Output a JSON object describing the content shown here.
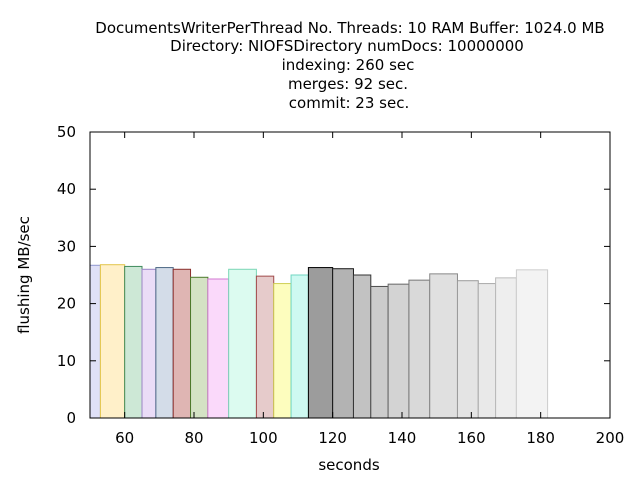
{
  "chart_data": {
    "type": "bar",
    "title_lines": [
      "DocumentsWriterPerThread No. Threads: 10 RAM Buffer: 1024.0 MB",
      "Directory: NIOFSDirectory numDocs: 10000000",
      "indexing: 260 sec",
      "merges: 92 sec.",
      "commit: 23 sec."
    ],
    "xlabel": "seconds",
    "ylabel": "flushing MB/sec",
    "xlim": [
      50,
      200
    ],
    "ylim": [
      0,
      50
    ],
    "xticks": [
      60,
      80,
      100,
      120,
      140,
      160,
      180,
      200
    ],
    "yticks": [
      0,
      10,
      20,
      30,
      40,
      50
    ],
    "grid": false,
    "legend": "none",
    "bars": [
      {
        "x0": 50,
        "x1": 53,
        "value": 26.7,
        "fill": "#dfe0f7",
        "stroke": "#8f97cf"
      },
      {
        "x0": 53,
        "x1": 60,
        "value": 26.8,
        "fill": "#fff0c9",
        "stroke": "#e2c44a"
      },
      {
        "x0": 60,
        "x1": 65,
        "value": 26.5,
        "fill": "#cde8d6",
        "stroke": "#3f8a5c"
      },
      {
        "x0": 65,
        "x1": 69,
        "value": 26.0,
        "fill": "#eadcf7",
        "stroke": "#9a83c6"
      },
      {
        "x0": 69,
        "x1": 74,
        "value": 26.3,
        "fill": "#d3dce8",
        "stroke": "#4e6986"
      },
      {
        "x0": 74,
        "x1": 79,
        "value": 26.0,
        "fill": "#dfb5b3",
        "stroke": "#8a2f2b"
      },
      {
        "x0": 79,
        "x1": 84,
        "value": 24.6,
        "fill": "#d4e2c4",
        "stroke": "#4c7a2b"
      },
      {
        "x0": 84,
        "x1": 90,
        "value": 24.3,
        "fill": "#fad9fa",
        "stroke": "#d27ad2"
      },
      {
        "x0": 90,
        "x1": 98,
        "value": 26.0,
        "fill": "#dcfbf0",
        "stroke": "#7ad7b6"
      },
      {
        "x0": 98,
        "x1": 103,
        "value": 24.8,
        "fill": "#e6cbcb",
        "stroke": "#a0494a"
      },
      {
        "x0": 103,
        "x1": 108,
        "value": 23.5,
        "fill": "#fdfdbe",
        "stroke": "#cfcf52"
      },
      {
        "x0": 108,
        "x1": 113,
        "value": 25.0,
        "fill": "#cef9f1",
        "stroke": "#70d6c2"
      },
      {
        "x0": 113,
        "x1": 120,
        "value": 26.3,
        "fill": "#9c9c9c",
        "stroke": "#000000"
      },
      {
        "x0": 120,
        "x1": 126,
        "value": 26.1,
        "fill": "#b3b3b3",
        "stroke": "#1a1a1a"
      },
      {
        "x0": 126,
        "x1": 131,
        "value": 25.0,
        "fill": "#c2c2c2",
        "stroke": "#333333"
      },
      {
        "x0": 131,
        "x1": 136,
        "value": 23.0,
        "fill": "#cccccc",
        "stroke": "#4d4d4d"
      },
      {
        "x0": 136,
        "x1": 142,
        "value": 23.4,
        "fill": "#d3d3d3",
        "stroke": "#666666"
      },
      {
        "x0": 142,
        "x1": 148,
        "value": 24.1,
        "fill": "#d9d9d9",
        "stroke": "#777777"
      },
      {
        "x0": 148,
        "x1": 156,
        "value": 25.2,
        "fill": "#e0e0e0",
        "stroke": "#888888"
      },
      {
        "x0": 156,
        "x1": 162,
        "value": 24.0,
        "fill": "#e4e4e4",
        "stroke": "#999999"
      },
      {
        "x0": 162,
        "x1": 167,
        "value": 23.5,
        "fill": "#e9e9e9",
        "stroke": "#aaaaaa"
      },
      {
        "x0": 167,
        "x1": 173,
        "value": 24.5,
        "fill": "#eeeeee",
        "stroke": "#bbbbbb"
      },
      {
        "x0": 173,
        "x1": 182,
        "value": 25.9,
        "fill": "#f3f3f3",
        "stroke": "#cccccc"
      }
    ],
    "colors": {
      "frame": "#000000",
      "background": "#ffffff"
    }
  }
}
